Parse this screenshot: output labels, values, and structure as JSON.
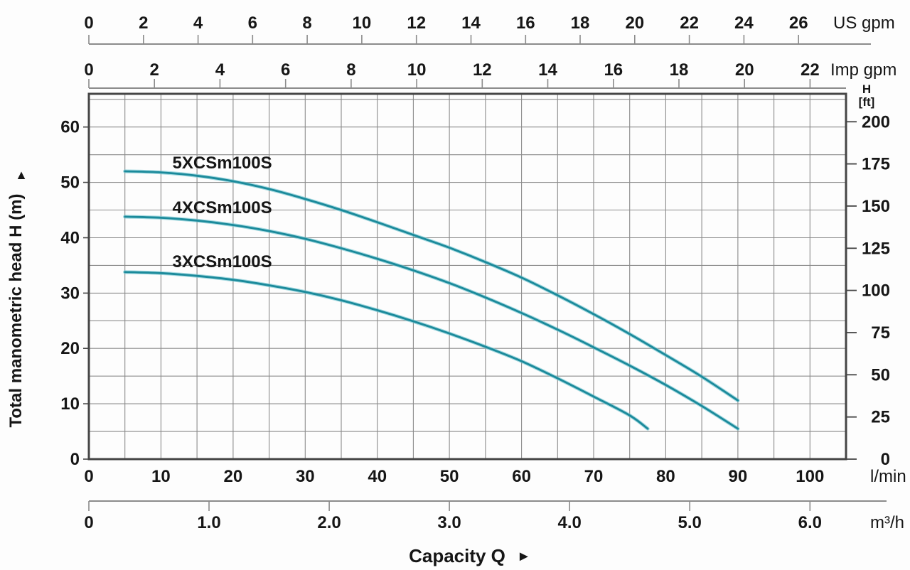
{
  "chart_data": {
    "type": "line",
    "description": "Pump performance curves: total manometric head vs capacity",
    "x_range_lmin": [
      0,
      105
    ],
    "y_range_m": [
      0,
      66
    ],
    "grid": {
      "x_step_lmin": 5,
      "y_step_m": 5,
      "grid_on": true
    },
    "axes": {
      "us_gpm": {
        "unit": "US gpm",
        "ticks": [
          0,
          2,
          4,
          6,
          8,
          10,
          12,
          14,
          16,
          18,
          20,
          22,
          24,
          26
        ],
        "lmin_per_unit": 3.785
      },
      "imp_gpm": {
        "unit": "Imp gpm",
        "ticks": [
          0,
          2,
          4,
          6,
          8,
          10,
          12,
          14,
          16,
          18,
          20,
          22
        ],
        "lmin_per_unit": 4.546
      },
      "lmin": {
        "unit": "l/min",
        "ticks": [
          0,
          10,
          20,
          30,
          40,
          50,
          60,
          70,
          80,
          90,
          100
        ],
        "lmin_per_unit": 1
      },
      "m3h": {
        "unit": "m³/h",
        "tick_labels": [
          "0",
          "1.0",
          "2.0",
          "3.0",
          "4.0",
          "5.0",
          "6.0"
        ],
        "tick_values": [
          0,
          1,
          2,
          3,
          4,
          5,
          6
        ],
        "lmin_per_unit": 16.6667
      },
      "left_m": {
        "title": "Total manometric head H (m)",
        "arrow": "▲",
        "ticks": [
          0,
          10,
          20,
          30,
          40,
          50,
          60
        ]
      },
      "right_ft": {
        "title_line1": "H",
        "title_line2": "[ft]",
        "ticks": [
          0,
          25,
          50,
          75,
          100,
          125,
          150,
          175,
          200
        ],
        "m_per_ft": 0.3048
      }
    },
    "capacity": {
      "label": "Capacity Q",
      "arrow": "►"
    },
    "series": [
      {
        "name": "5XCSm100S",
        "label_q": 18.5,
        "label_h": 52.5,
        "points": [
          [
            5,
            52.0
          ],
          [
            10,
            51.8
          ],
          [
            15,
            51.2
          ],
          [
            20,
            50.2
          ],
          [
            25,
            48.8
          ],
          [
            30,
            47.0
          ],
          [
            35,
            45.0
          ],
          [
            40,
            42.8
          ],
          [
            45,
            40.5
          ],
          [
            50,
            38.2
          ],
          [
            55,
            35.6
          ],
          [
            60,
            32.8
          ],
          [
            65,
            29.6
          ],
          [
            70,
            26.2
          ],
          [
            75,
            22.6
          ],
          [
            80,
            18.8
          ],
          [
            85,
            14.9
          ],
          [
            90,
            10.6
          ]
        ]
      },
      {
        "name": "4XCSm100S",
        "label_q": 18.5,
        "label_h": 44.4,
        "points": [
          [
            5,
            43.8
          ],
          [
            10,
            43.6
          ],
          [
            15,
            43.1
          ],
          [
            20,
            42.3
          ],
          [
            25,
            41.2
          ],
          [
            30,
            39.8
          ],
          [
            35,
            38.1
          ],
          [
            40,
            36.2
          ],
          [
            45,
            34.1
          ],
          [
            50,
            31.8
          ],
          [
            55,
            29.2
          ],
          [
            60,
            26.4
          ],
          [
            65,
            23.4
          ],
          [
            70,
            20.2
          ],
          [
            75,
            16.9
          ],
          [
            80,
            13.4
          ],
          [
            85,
            9.6
          ],
          [
            90,
            5.5
          ]
        ]
      },
      {
        "name": "3XCSm100S",
        "label_q": 18.5,
        "label_h": 34.7,
        "points": [
          [
            5,
            33.8
          ],
          [
            10,
            33.6
          ],
          [
            15,
            33.1
          ],
          [
            20,
            32.4
          ],
          [
            25,
            31.4
          ],
          [
            30,
            30.2
          ],
          [
            35,
            28.7
          ],
          [
            40,
            26.9
          ],
          [
            45,
            24.9
          ],
          [
            50,
            22.7
          ],
          [
            55,
            20.3
          ],
          [
            60,
            17.7
          ],
          [
            65,
            14.6
          ],
          [
            70,
            11.3
          ],
          [
            75,
            7.9
          ],
          [
            77.5,
            5.5
          ]
        ]
      }
    ],
    "colors": {
      "curve": "#1B8A9B",
      "curve_halo": "#74C6D1",
      "grid": "#8B8B8B",
      "border": "#454545",
      "text": "#161616",
      "background": "#FDFDFD"
    }
  }
}
